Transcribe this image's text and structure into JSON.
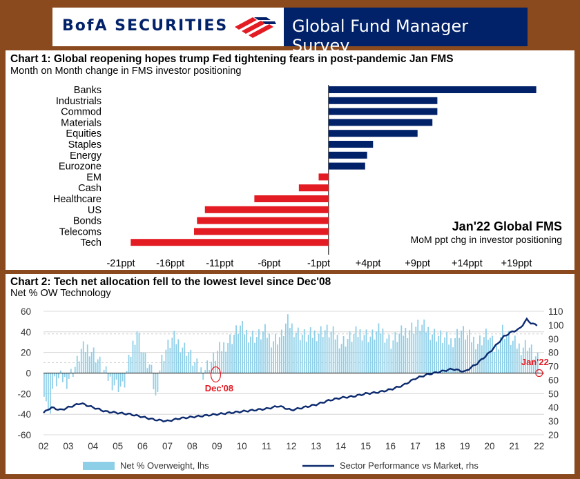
{
  "header": {
    "brand": "BofA SECURITIES",
    "survey": "Global Fund Manager Survey"
  },
  "colors": {
    "navy": "#012169",
    "red": "#e31b23",
    "bar_blue": "#8ecfe8",
    "line_blue": "#0c2a6e"
  },
  "chart1": {
    "title": "Chart 1: Global reopening hopes trump Fed tightening fears in post-pandemic Jan FMS",
    "subtitle": "Month on Month change in FMS investor positioning",
    "annotation_title": "Jan'22 Global FMS",
    "annotation_sub": "MoM ppt chg in investor positioning",
    "tick_labels": [
      "-21ppt",
      "-16ppt",
      "-11ppt",
      "-6ppt",
      "-1ppt",
      "+4ppt",
      "+9ppt",
      "+14ppt",
      "+19ppt"
    ]
  },
  "chart2": {
    "title": "Chart 2: Tech net allocation fell to the lowest level since Dec'08",
    "subtitle": "Net % OW Technology",
    "left_ticks": [
      "60",
      "40",
      "20",
      "0",
      "-20",
      "-40",
      "-60"
    ],
    "right_ticks": [
      "110",
      "100",
      "90",
      "80",
      "70",
      "60",
      "50",
      "40",
      "30",
      "20"
    ],
    "x_ticks": [
      "02",
      "03",
      "04",
      "05",
      "06",
      "07",
      "08",
      "09",
      "10",
      "11",
      "12",
      "13",
      "14",
      "15",
      "16",
      "17",
      "18",
      "19",
      "20",
      "21",
      "22"
    ],
    "marker_dec08": "Dec'08",
    "marker_jan22": "Jan'22",
    "legend_bar": "Net % Overweight, lhs",
    "legend_line": "Sector Performance vs Market, rhs"
  },
  "chart_data": [
    {
      "type": "bar",
      "orientation": "horizontal",
      "categories": [
        "Banks",
        "Industrials",
        "Commod",
        "Materials",
        "Equities",
        "Staples",
        "Energy",
        "Eurozone",
        "EM",
        "Cash",
        "Healthcare",
        "US",
        "Bonds",
        "Telecoms",
        "Tech"
      ],
      "values": [
        21,
        11,
        11,
        10.5,
        9,
        4.5,
        3.9,
        3.7,
        -1,
        -3,
        -7.5,
        -12.5,
        -13.3,
        -13.6,
        -20
      ],
      "xlim": [
        -21,
        20
      ],
      "colors": {
        "positive": "#012169",
        "negative": "#e31b23"
      }
    },
    {
      "type": "bar+line",
      "x_range": [
        2002,
        2022.2
      ],
      "ylim_left": [
        -60,
        60
      ],
      "ylim_right": [
        20,
        110
      ],
      "series": [
        {
          "name": "Net % Overweight, lhs",
          "type": "bar",
          "axis": "left",
          "points": [
            [
              2002.0,
              -15
            ],
            [
              2002.1,
              -28
            ],
            [
              2002.2,
              -48
            ],
            [
              2002.3,
              -18
            ],
            [
              2002.4,
              -10
            ],
            [
              2002.5,
              -8
            ],
            [
              2002.7,
              -5
            ],
            [
              2002.9,
              -8
            ],
            [
              2003.0,
              -4
            ],
            [
              2003.3,
              8
            ],
            [
              2003.5,
              22
            ],
            [
              2003.8,
              25
            ],
            [
              2004.0,
              20
            ],
            [
              2004.2,
              12
            ],
            [
              2004.4,
              2
            ],
            [
              2004.6,
              -5
            ],
            [
              2004.8,
              -10
            ],
            [
              2005.0,
              -12
            ],
            [
              2005.2,
              -15
            ],
            [
              2005.4,
              8
            ],
            [
              2005.6,
              30
            ],
            [
              2005.75,
              42
            ],
            [
              2005.9,
              28
            ],
            [
              2006.1,
              12
            ],
            [
              2006.3,
              5
            ],
            [
              2006.5,
              -25
            ],
            [
              2006.7,
              10
            ],
            [
              2006.9,
              22
            ],
            [
              2007.2,
              34
            ],
            [
              2007.5,
              28
            ],
            [
              2007.8,
              22
            ],
            [
              2008.0,
              12
            ],
            [
              2008.2,
              5
            ],
            [
              2008.4,
              1
            ],
            [
              2008.6,
              8
            ],
            [
              2008.8,
              12
            ],
            [
              2009.0,
              20
            ],
            [
              2009.3,
              28
            ],
            [
              2009.6,
              35
            ],
            [
              2009.9,
              45
            ],
            [
              2010.2,
              38
            ],
            [
              2010.6,
              35
            ],
            [
              2010.9,
              40
            ],
            [
              2011.2,
              32
            ],
            [
              2011.6,
              36
            ],
            [
              2011.8,
              50
            ],
            [
              2012.2,
              40
            ],
            [
              2012.6,
              35
            ],
            [
              2012.9,
              38
            ],
            [
              2013.3,
              42
            ],
            [
              2013.7,
              37
            ],
            [
              2014.0,
              30
            ],
            [
              2014.4,
              35
            ],
            [
              2014.8,
              40
            ],
            [
              2015.2,
              35
            ],
            [
              2015.6,
              42
            ],
            [
              2016.0,
              30
            ],
            [
              2016.4,
              38
            ],
            [
              2016.8,
              44
            ],
            [
              2017.2,
              46
            ],
            [
              2017.6,
              40
            ],
            [
              2018.0,
              35
            ],
            [
              2018.4,
              30
            ],
            [
              2018.8,
              42
            ],
            [
              2019.1,
              35
            ],
            [
              2019.5,
              30
            ],
            [
              2019.9,
              38
            ],
            [
              2020.2,
              22
            ],
            [
              2020.5,
              42
            ],
            [
              2020.9,
              30
            ],
            [
              2021.2,
              25
            ],
            [
              2021.5,
              28
            ],
            [
              2021.9,
              12
            ]
          ]
        },
        {
          "name": "Sector Performance vs Market, rhs",
          "type": "line",
          "axis": "right",
          "points": [
            [
              2002.0,
              36
            ],
            [
              2002.3,
              40
            ],
            [
              2002.7,
              38
            ],
            [
              2003.0,
              40
            ],
            [
              2003.5,
              43
            ],
            [
              2004.0,
              40
            ],
            [
              2004.5,
              37
            ],
            [
              2005.0,
              36
            ],
            [
              2005.5,
              35
            ],
            [
              2006.0,
              33
            ],
            [
              2006.5,
              31
            ],
            [
              2007.0,
              30
            ],
            [
              2007.5,
              32
            ],
            [
              2008.0,
              33
            ],
            [
              2008.5,
              34
            ],
            [
              2009.0,
              35
            ],
            [
              2009.5,
              36
            ],
            [
              2010.0,
              37
            ],
            [
              2010.5,
              38
            ],
            [
              2011.0,
              39
            ],
            [
              2011.5,
              41
            ],
            [
              2012.0,
              38
            ],
            [
              2012.5,
              40
            ],
            [
              2013.0,
              42
            ],
            [
              2013.5,
              45
            ],
            [
              2014.0,
              47
            ],
            [
              2014.5,
              48
            ],
            [
              2015.0,
              50
            ],
            [
              2015.5,
              51
            ],
            [
              2016.0,
              53
            ],
            [
              2016.5,
              56
            ],
            [
              2017.0,
              61
            ],
            [
              2017.5,
              64
            ],
            [
              2018.0,
              66
            ],
            [
              2018.5,
              68
            ],
            [
              2019.0,
              66
            ],
            [
              2019.5,
              72
            ],
            [
              2020.0,
              80
            ],
            [
              2020.3,
              86
            ],
            [
              2020.6,
              92
            ],
            [
              2020.9,
              95
            ],
            [
              2021.2,
              97
            ],
            [
              2021.5,
              104
            ],
            [
              2021.7,
              101
            ],
            [
              2021.9,
              100
            ]
          ]
        }
      ]
    }
  ]
}
